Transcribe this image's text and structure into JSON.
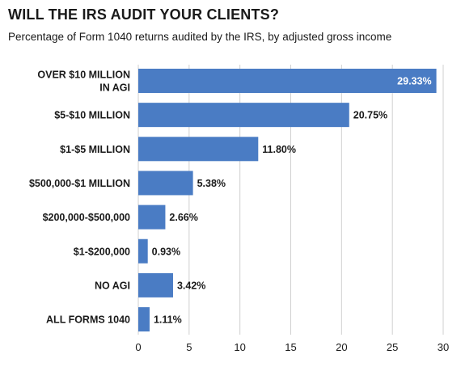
{
  "chart_data": {
    "type": "bar",
    "orientation": "horizontal",
    "title": "WILL THE IRS AUDIT YOUR CLIENTS?",
    "subtitle": "Percentage of Form 1040 returns audited by the IRS, by adjusted gross income",
    "categories": [
      [
        "OVER $10 MILLION",
        "IN AGI"
      ],
      [
        "$5-$10 MILLION"
      ],
      [
        "$1-$5 MILLION"
      ],
      [
        "$500,000-$1 MILLION"
      ],
      [
        "$200,000-$500,000"
      ],
      [
        "$1-$200,000"
      ],
      [
        "NO AGI"
      ],
      [
        "ALL FORMS 1040"
      ]
    ],
    "values": [
      29.33,
      20.75,
      11.8,
      5.38,
      2.66,
      0.93,
      3.42,
      1.11
    ],
    "value_labels": [
      "29.33%",
      "20.75%",
      "11.80%",
      "5.38%",
      "2.66%",
      "0.93%",
      "3.42%",
      "1.11%"
    ],
    "xlim": [
      0,
      30
    ],
    "xticks": [
      0,
      5,
      10,
      15,
      20,
      25,
      30
    ],
    "grid": "vertical",
    "bar_color": "#4a7cc4",
    "grid_color": "#cfcfcf"
  }
}
